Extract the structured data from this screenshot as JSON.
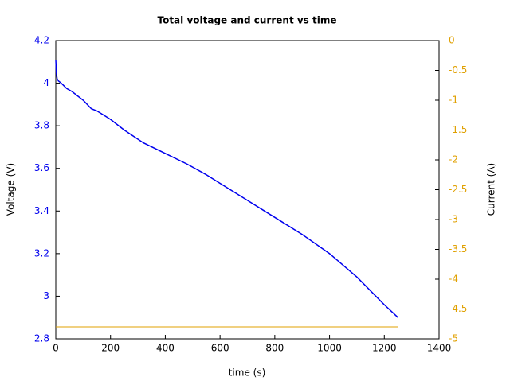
{
  "chart_data": {
    "type": "line",
    "title": "Total voltage and current vs time",
    "x_label": "time (s)",
    "y_label": "Voltage (V)",
    "y2_label": "Current (A)",
    "x": [
      0,
      2,
      5,
      10,
      20,
      40,
      60,
      100,
      130,
      150,
      200,
      250,
      320,
      400,
      480,
      550,
      600,
      700,
      800,
      900,
      1000,
      1100,
      1200,
      1250
    ],
    "series": [
      {
        "name": "Voltage",
        "color": "#0000ee",
        "axis": "y",
        "values": [
          4.11,
          4.05,
          4.02,
          4.01,
          4.0,
          3.975,
          3.96,
          3.92,
          3.88,
          3.87,
          3.83,
          3.78,
          3.72,
          3.67,
          3.62,
          3.57,
          3.53,
          3.45,
          3.37,
          3.29,
          3.2,
          3.09,
          2.96,
          2.9
        ]
      },
      {
        "name": "Current",
        "color": "#e0a000",
        "axis": "y2",
        "values": [
          -4.8,
          -4.8,
          -4.8,
          -4.8,
          -4.8,
          -4.8,
          -4.8,
          -4.8,
          -4.8,
          -4.8,
          -4.8,
          -4.8,
          -4.8,
          -4.8,
          -4.8,
          -4.8,
          -4.8,
          -4.8,
          -4.8,
          -4.8,
          -4.8,
          -4.8,
          -4.8,
          -4.8
        ]
      }
    ],
    "xlim": [
      0,
      1400
    ],
    "xticks": [
      0,
      200,
      400,
      600,
      800,
      1000,
      1200,
      1400
    ],
    "ylim": [
      2.8,
      4.2
    ],
    "yticks": [
      2.8,
      3,
      3.2,
      3.4,
      3.6,
      3.8,
      4,
      4.2
    ],
    "y2lim": [
      -5,
      0
    ],
    "y2ticks": [
      -5,
      -4.5,
      -4,
      -3.5,
      -3,
      -2.5,
      -2,
      -1.5,
      -1,
      -0.5,
      0
    ]
  }
}
